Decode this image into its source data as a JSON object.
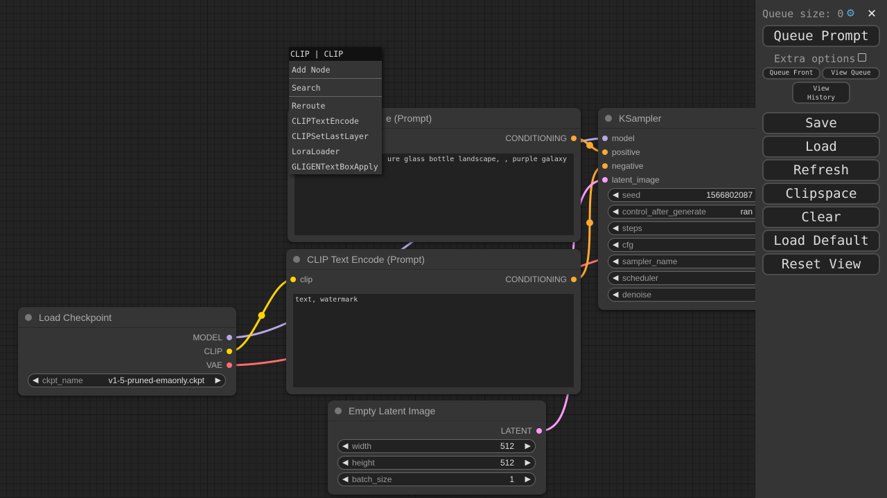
{
  "colors": {
    "model": "#b8a6e6",
    "clip": "#ffd500",
    "vae": "#ff6e6e",
    "conditioning": "#ffa931",
    "latent": "#ff9cf9"
  },
  "context_menu": {
    "header": "CLIP | CLIP",
    "items": [
      "Add Node",
      "Search",
      "Reroute",
      "CLIPTextEncode",
      "CLIPSetLastLayer",
      "LoraLoader",
      "GLIGENTextBoxApply"
    ]
  },
  "nodes": {
    "clip_top": {
      "title_visible": "e (Prompt)",
      "output": "CONDITIONING",
      "text": "ure glass bottle landscape, , purple galaxy"
    },
    "clip_bottom": {
      "title": "CLIP Text Encode (Prompt)",
      "input": "clip",
      "output": "CONDITIONING",
      "text": "text, watermark"
    },
    "load_checkpoint": {
      "title": "Load Checkpoint",
      "outputs": [
        "MODEL",
        "CLIP",
        "VAE"
      ],
      "ckpt_label": "ckpt_name",
      "ckpt_value": "v1-5-pruned-emaonly.ckpt"
    },
    "empty_latent": {
      "title": "Empty Latent Image",
      "output": "LATENT",
      "widgets": [
        {
          "label": "width",
          "value": "512"
        },
        {
          "label": "height",
          "value": "512"
        },
        {
          "label": "batch_size",
          "value": "1"
        }
      ]
    },
    "ksampler": {
      "title": "KSampler",
      "inputs": [
        "model",
        "positive",
        "negative",
        "latent_image"
      ],
      "widgets": [
        {
          "label": "seed",
          "value": "1566802087"
        },
        {
          "label": "control_after_generate",
          "value": "ran"
        },
        {
          "label": "steps",
          "value": ""
        },
        {
          "label": "cfg",
          "value": ""
        },
        {
          "label": "sampler_name",
          "value": ""
        },
        {
          "label": "scheduler",
          "value": ""
        },
        {
          "label": "denoise",
          "value": ""
        }
      ]
    }
  },
  "panel": {
    "queue_size": "Queue size: 0",
    "queue_prompt": "Queue Prompt",
    "extra_options": "Extra options",
    "queue_front": "Queue Front",
    "view_queue": "View Queue",
    "view_history": "View History",
    "buttons": [
      "Save",
      "Load",
      "Refresh",
      "Clipspace",
      "Clear",
      "Load Default",
      "Reset View"
    ]
  }
}
